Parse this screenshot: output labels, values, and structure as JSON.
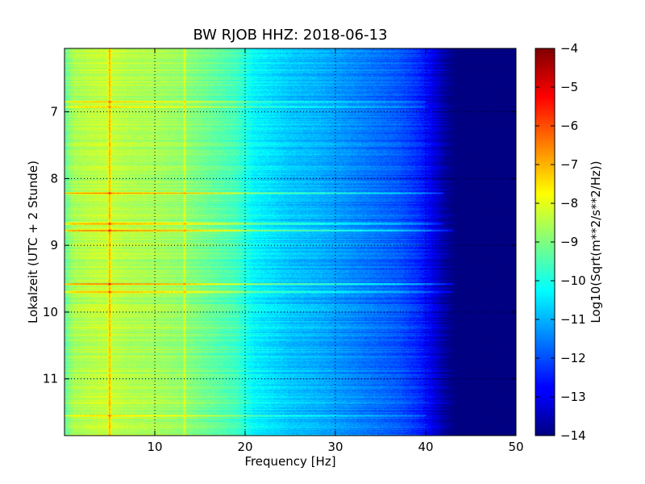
{
  "chart_data": {
    "type": "heatmap",
    "title": "BW RJOB HHZ: 2018-06-13",
    "xlabel": "Frequency [Hz]",
    "ylabel": "Lokalzeit (UTC + 2 Stunde)",
    "xlim": [
      0,
      50
    ],
    "ylim": [
      11.85,
      6.05
    ],
    "y_inverted": true,
    "grid": true,
    "x_ticks": [
      10,
      20,
      30,
      40,
      50
    ],
    "y_ticks": [
      7,
      8,
      9,
      10,
      11
    ],
    "colorbar": {
      "label": "Log10(Sqrt(m**2/s**2/Hz))",
      "colormap": "jet",
      "range": [
        -14,
        -4
      ],
      "ticks": [
        -4,
        -5,
        -6,
        -7,
        -8,
        -9,
        -10,
        -11,
        -12,
        -13,
        -14
      ]
    },
    "spectrum_profile": {
      "frequency_hz": [
        0,
        1,
        3,
        5,
        7,
        10,
        13,
        16,
        19,
        21,
        25,
        28,
        31,
        34,
        37,
        39,
        40,
        41,
        42,
        43,
        50
      ],
      "log10_psd": [
        -9.3,
        -8.6,
        -8.4,
        -8.3,
        -8.5,
        -8.6,
        -8.8,
        -9.2,
        -9.6,
        -10.3,
        -10.8,
        -11.0,
        -11.3,
        -11.6,
        -11.9,
        -12.3,
        -12.6,
        -13.1,
        -13.6,
        -14.0,
        -14.0
      ]
    },
    "horizontal_bands": [
      {
        "time": 6.85,
        "boost": 1.6,
        "fmax": 40
      },
      {
        "time": 6.93,
        "boost": 1.2,
        "fmax": 40
      },
      {
        "time": 8.22,
        "boost": 2.0,
        "fmax": 42
      },
      {
        "time": 8.68,
        "boost": 2.2,
        "fmax": 42
      },
      {
        "time": 8.78,
        "boost": 2.2,
        "fmax": 43
      },
      {
        "time": 9.58,
        "boost": 2.2,
        "fmax": 43
      },
      {
        "time": 9.7,
        "boost": 1.8,
        "fmax": 43
      },
      {
        "time": 11.55,
        "boost": 1.2,
        "fmax": 40
      }
    ],
    "vertical_lines": [
      {
        "frequency": 5.0,
        "boost": 1.6
      },
      {
        "frequency": 13.3,
        "boost": 0.9
      }
    ]
  }
}
